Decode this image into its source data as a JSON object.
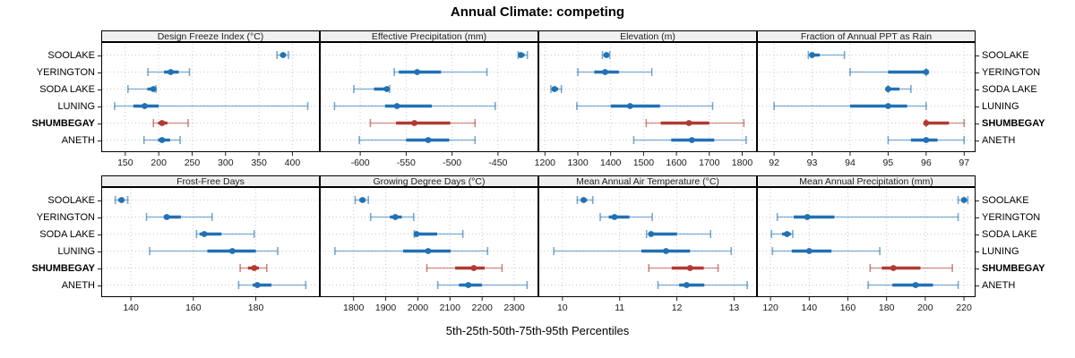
{
  "title": "Annual Climate: competing",
  "caption": "5th-25th-50th-75th-95th Percentiles",
  "sites": [
    "SOOLAKE",
    "YERINGTON",
    "SODA LAKE",
    "LUNING",
    "SHUMBEGAY",
    "ANETH"
  ],
  "highlight_site": "SHUMBEGAY",
  "colors": {
    "normal": "#2171b4",
    "highlight": "#b23a32",
    "strip_bg": "#f0f0f0",
    "grid": "#c9c9c9"
  },
  "chart_data": {
    "type": "scatter",
    "subtype": "trellis-percentile-interval-dotplot",
    "title": "Annual Climate: competing",
    "xlabel": "5th-25th-50th-75th-95th Percentiles",
    "percentile_labels": [
      "5th",
      "25th",
      "50th",
      "75th",
      "95th"
    ],
    "legend_position": "none",
    "grid": "dotted",
    "panels": [
      {
        "label": "Design Freeze Index (°C)",
        "row": 0,
        "col": 0,
        "xlim": [
          114,
          441
        ],
        "ticks": [
          150,
          200,
          250,
          300,
          350,
          400
        ],
        "values": {
          "SOOLAKE": [
            377,
            382,
            386,
            390,
            394
          ],
          "YERINGTON": [
            184,
            208,
            218,
            230,
            246
          ],
          "SODA LAKE": [
            154,
            183,
            192,
            194,
            196
          ],
          "LUNING": [
            134,
            162,
            179,
            200,
            423
          ],
          "SHUMBEGAY": [
            192,
            199,
            205,
            213,
            244
          ],
          "ANETH": [
            178,
            199,
            205,
            217,
            232
          ]
        }
      },
      {
        "label": "Effective Precipitation (mm)",
        "row": 0,
        "col": 1,
        "xlim": [
          -644,
          -406
        ],
        "ticks": [
          -600,
          -550,
          -500,
          -450
        ],
        "values": {
          "SOOLAKE": [
            -428,
            -426,
            -425,
            -421,
            -418
          ],
          "YERINGTON": [
            -563,
            -558,
            -538,
            -512,
            -462
          ],
          "SODA LAKE": [
            -607,
            -585,
            -571,
            -569,
            -568
          ],
          "LUNING": [
            -628,
            -573,
            -560,
            -522,
            -453
          ],
          "SHUMBEGAY": [
            -589,
            -561,
            -541,
            -502,
            -475
          ],
          "ANETH": [
            -601,
            -550,
            -526,
            -503,
            -475
          ]
        }
      },
      {
        "label": "Elevation (m)",
        "row": 0,
        "col": 2,
        "xlim": [
          1180,
          1845
        ],
        "ticks": [
          1200,
          1300,
          1400,
          1500,
          1600,
          1700,
          1800
        ],
        "values": {
          "SOOLAKE": [
            1375,
            1382,
            1387,
            1392,
            1397
          ],
          "YERINGTON": [
            1300,
            1350,
            1383,
            1425,
            1525
          ],
          "SODA LAKE": [
            1218,
            1224,
            1229,
            1240,
            1250
          ],
          "LUNING": [
            1297,
            1400,
            1459,
            1550,
            1710
          ],
          "SHUMBEGAY": [
            1508,
            1552,
            1638,
            1700,
            1805
          ],
          "ANETH": [
            1470,
            1584,
            1647,
            1715,
            1812
          ]
        }
      },
      {
        "label": "Fraction of Annual PPT as Rain",
        "row": 0,
        "col": 3,
        "xlim": [
          91.55,
          97.3
        ],
        "ticks": [
          92,
          93,
          94,
          95,
          96,
          97
        ],
        "values": {
          "SOOLAKE": [
            92.9,
            92.95,
            93.0,
            93.2,
            93.85
          ],
          "YERINGTON": [
            94.0,
            95.0,
            96.0,
            96.0,
            96.0
          ],
          "SODA LAKE": [
            95.0,
            95.0,
            95.0,
            95.3,
            95.6
          ],
          "LUNING": [
            92.0,
            94.0,
            95.0,
            95.5,
            96.0
          ],
          "SHUMBEGAY": [
            96.0,
            96.0,
            96.0,
            96.6,
            97.0
          ],
          "ANETH": [
            95.0,
            95.6,
            96.0,
            96.3,
            97.0
          ]
        }
      },
      {
        "label": "Frost-Free Days",
        "row": 1,
        "col": 0,
        "xlim": [
          130.5,
          200.5
        ],
        "ticks": [
          140,
          160,
          180
        ],
        "values": {
          "SOOLAKE": [
            135,
            136,
            137,
            137.7,
            139
          ],
          "YERINGTON": [
            145,
            150.5,
            151.5,
            156,
            166
          ],
          "SODA LAKE": [
            161,
            162,
            163.5,
            169,
            179.5
          ],
          "LUNING": [
            146,
            164.5,
            172.5,
            180,
            187
          ],
          "SHUMBEGAY": [
            175,
            177.5,
            179.5,
            181,
            183.5
          ],
          "ANETH": [
            174.5,
            179,
            180.5,
            185,
            196
          ]
        }
      },
      {
        "label": "Growing Degree Days (°C)",
        "row": 1,
        "col": 1,
        "xlim": [
          1695,
          2375
        ],
        "ticks": [
          1800,
          1900,
          2000,
          2100,
          2200,
          2300
        ],
        "values": {
          "SOOLAKE": [
            1805,
            1818,
            1828,
            1837,
            1846
          ],
          "YERINGTON": [
            1853,
            1913,
            1930,
            1950,
            1987
          ],
          "SODA LAKE": [
            1989,
            1993,
            1996,
            2060,
            2140
          ],
          "LUNING": [
            1742,
            1954,
            2032,
            2102,
            2217
          ],
          "SHUMBEGAY": [
            2028,
            2116,
            2174,
            2208,
            2262
          ],
          "ANETH": [
            2062,
            2128,
            2157,
            2199,
            2340
          ]
        }
      },
      {
        "label": "Mean Annual Air Temperature (°C)",
        "row": 1,
        "col": 2,
        "xlim": [
          9.58,
          13.4
        ],
        "ticks": [
          10,
          11,
          12,
          13
        ],
        "values": {
          "SOOLAKE": [
            10.26,
            10.32,
            10.37,
            10.43,
            10.53
          ],
          "YERINGTON": [
            10.66,
            10.81,
            10.91,
            11.17,
            11.57
          ],
          "SODA LAKE": [
            11.47,
            11.52,
            11.55,
            12.0,
            12.59
          ],
          "LUNING": [
            9.85,
            11.38,
            11.81,
            12.23,
            12.95
          ],
          "SHUMBEGAY": [
            11.51,
            11.91,
            12.23,
            12.47,
            12.72
          ],
          "ANETH": [
            11.67,
            12.04,
            12.17,
            12.48,
            13.23
          ]
        }
      },
      {
        "label": "Mean Annual Precipitation (mm)",
        "row": 1,
        "col": 3,
        "xlim": [
          113,
          226
        ],
        "ticks": [
          120,
          140,
          160,
          180,
          200,
          220
        ],
        "values": {
          "SOOLAKE": [
            217,
            219,
            220,
            221,
            222
          ],
          "YERINGTON": [
            123.5,
            132,
            139,
            153,
            217
          ],
          "SODA LAKE": [
            120.5,
            126,
            128.5,
            130.5,
            131.5
          ],
          "LUNING": [
            121,
            131,
            140,
            151.5,
            176.5
          ],
          "SHUMBEGAY": [
            171.5,
            177.5,
            183.5,
            197.5,
            214
          ],
          "ANETH": [
            170.5,
            183,
            195,
            204,
            217
          ]
        }
      }
    ]
  }
}
